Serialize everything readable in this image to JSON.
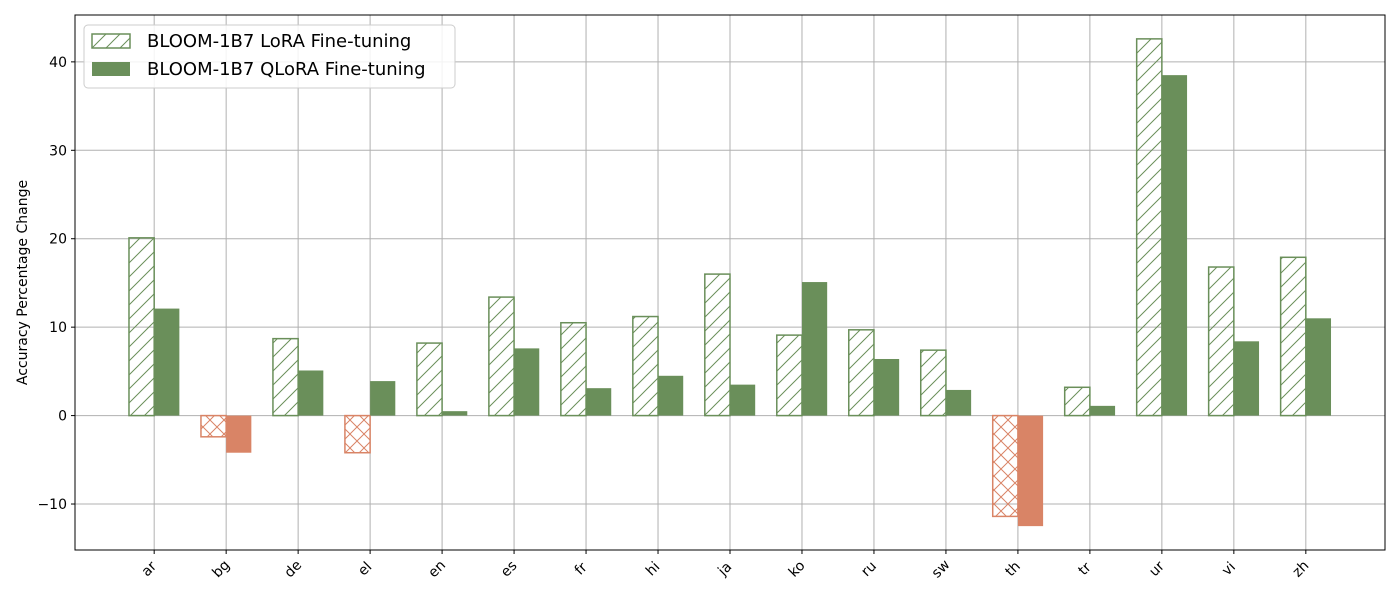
{
  "chart_data": {
    "type": "bar",
    "ylabel": "Accuracy Percentage Change",
    "xlabel": "",
    "ylim": [
      -15.2,
      45.3
    ],
    "yticks": [
      -10,
      0,
      10,
      20,
      30,
      40
    ],
    "ytick_labels": [
      "−10",
      "0",
      "10",
      "20",
      "30",
      "40"
    ],
    "grid": true,
    "legend_position": "top-left",
    "categories": [
      "ar",
      "bg",
      "de",
      "el",
      "en",
      "es",
      "fr",
      "hi",
      "ja",
      "ko",
      "ru",
      "sw",
      "th",
      "tr",
      "ur",
      "vi",
      "zh"
    ],
    "series": [
      {
        "name": "BLOOM-1B7 LoRA Fine-tuning",
        "style": "hatched",
        "values": [
          20.1,
          -2.4,
          8.7,
          -4.2,
          8.2,
          13.4,
          10.5,
          11.2,
          16.0,
          9.1,
          9.7,
          7.4,
          -11.4,
          3.2,
          42.6,
          16.8,
          17.9
        ]
      },
      {
        "name": "BLOOM-1B7 QLoRA Fine-tuning",
        "style": "solid",
        "values": [
          12.1,
          -4.2,
          5.1,
          3.9,
          0.5,
          7.6,
          3.1,
          4.5,
          3.5,
          15.1,
          6.4,
          2.9,
          -12.5,
          1.1,
          38.5,
          8.4,
          11.0
        ]
      }
    ],
    "colors": {
      "positive": "#6a8f5a",
      "negative": "#d98466",
      "grid": "#b0b0b0"
    }
  }
}
